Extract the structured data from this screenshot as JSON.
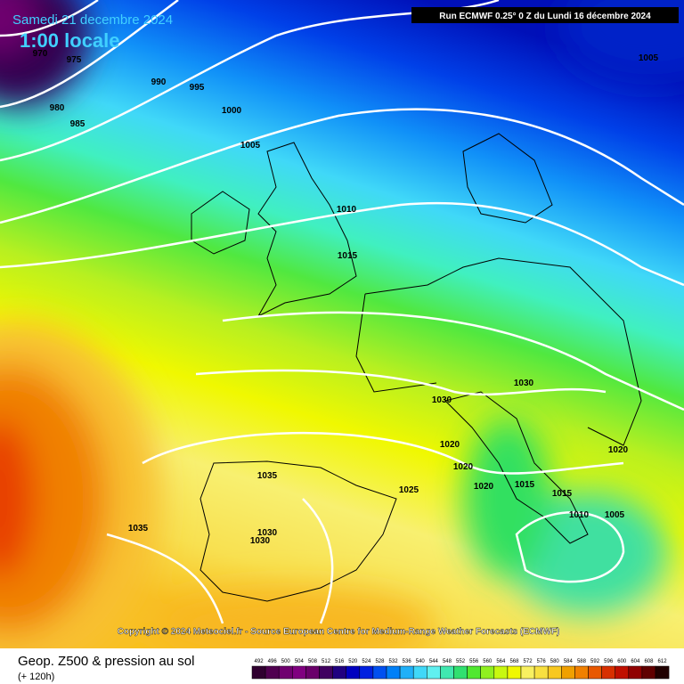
{
  "header": {
    "date": "Samedi 21 decembre 2024",
    "time": "1:00 locale",
    "run": "Run ECMWF 0.25° 0 Z du Lundi 16 décembre 2024"
  },
  "isobars": [
    "970",
    "975",
    "980",
    "985",
    "990",
    "995",
    "1000",
    "1005",
    "1010",
    "1015",
    "1005",
    "1030",
    "1030",
    "1020",
    "1020",
    "1020",
    "1025",
    "1015",
    "1015",
    "1010",
    "1005",
    "1020",
    "1035",
    "1030",
    "1030",
    "1035"
  ],
  "copyright": "Copyright © 2024 Meteociel.fr - Source European Centre for Medium-Range Weather Forecasts (ECMWF)",
  "footer": {
    "title": "Geop. Z500 & pression au sol",
    "subtitle": "(+ 120h)"
  },
  "legend": {
    "values": [
      492,
      496,
      500,
      504,
      508,
      512,
      516,
      520,
      524,
      528,
      532,
      536,
      540,
      544,
      548,
      552,
      556,
      560,
      564,
      568,
      572,
      576,
      580,
      584,
      588,
      592,
      596,
      600,
      604,
      608,
      612
    ],
    "colors": [
      "#300030",
      "#500050",
      "#700070",
      "#800080",
      "#6a006a",
      "#400060",
      "#200080",
      "#0000c0",
      "#0020e0",
      "#0050f0",
      "#0080f8",
      "#20b0f8",
      "#40d8f8",
      "#60f0f0",
      "#40e8b0",
      "#30e070",
      "#50e830",
      "#90f020",
      "#c8f810",
      "#f0f800",
      "#f8f060",
      "#f8e040",
      "#f8c820",
      "#f0a000",
      "#f08000",
      "#e85800",
      "#d83000",
      "#c01000",
      "#900000",
      "#600000",
      "#200000"
    ]
  }
}
